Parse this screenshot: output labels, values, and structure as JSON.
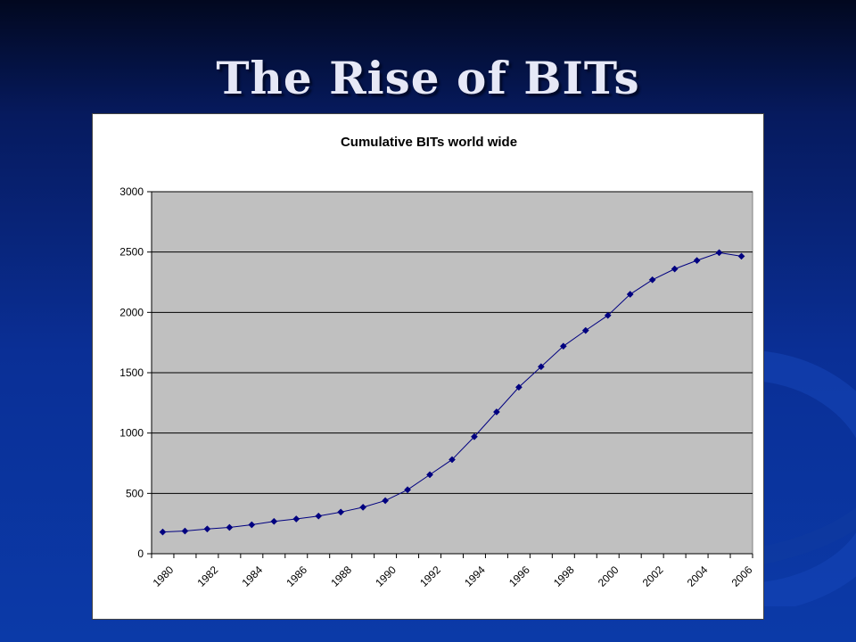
{
  "slide": {
    "title": "The Rise of BITs"
  },
  "colors": {
    "background_top": "#02081f",
    "background_bottom": "#0b3aa8",
    "title_text": "#e6e8f6",
    "plot_area": "#c0c0c0",
    "series": "#000080"
  },
  "chart_data": {
    "type": "line",
    "title": "Cumulative BITs world wide",
    "xlabel": "",
    "ylabel": "",
    "x": [
      1980,
      1981,
      1982,
      1983,
      1984,
      1985,
      1986,
      1987,
      1988,
      1989,
      1990,
      1991,
      1992,
      1993,
      1994,
      1995,
      1996,
      1997,
      1998,
      1999,
      2000,
      2001,
      2002,
      2003,
      2004,
      2005,
      2006
    ],
    "series": [
      {
        "values": [
          180,
          188,
          205,
          218,
          240,
          268,
          288,
          312,
          345,
          385,
          440,
          530,
          655,
          780,
          970,
          1175,
          1380,
          1550,
          1720,
          1850,
          1975,
          2150,
          2270,
          2360,
          2430,
          2495,
          2465
        ]
      }
    ],
    "x_tick_labels": [
      "1980",
      "1982",
      "1984",
      "1986",
      "1988",
      "1990",
      "1992",
      "1994",
      "1996",
      "1998",
      "2000",
      "2002",
      "2004",
      "2006"
    ],
    "y_tick_labels": [
      "0",
      "500",
      "1000",
      "1500",
      "2000",
      "2500",
      "3000"
    ],
    "ylim": [
      0,
      3000
    ],
    "xlim": [
      1979.5,
      2006.5
    ],
    "grid": "horizontal",
    "legend": "none",
    "marker": "diamond"
  }
}
